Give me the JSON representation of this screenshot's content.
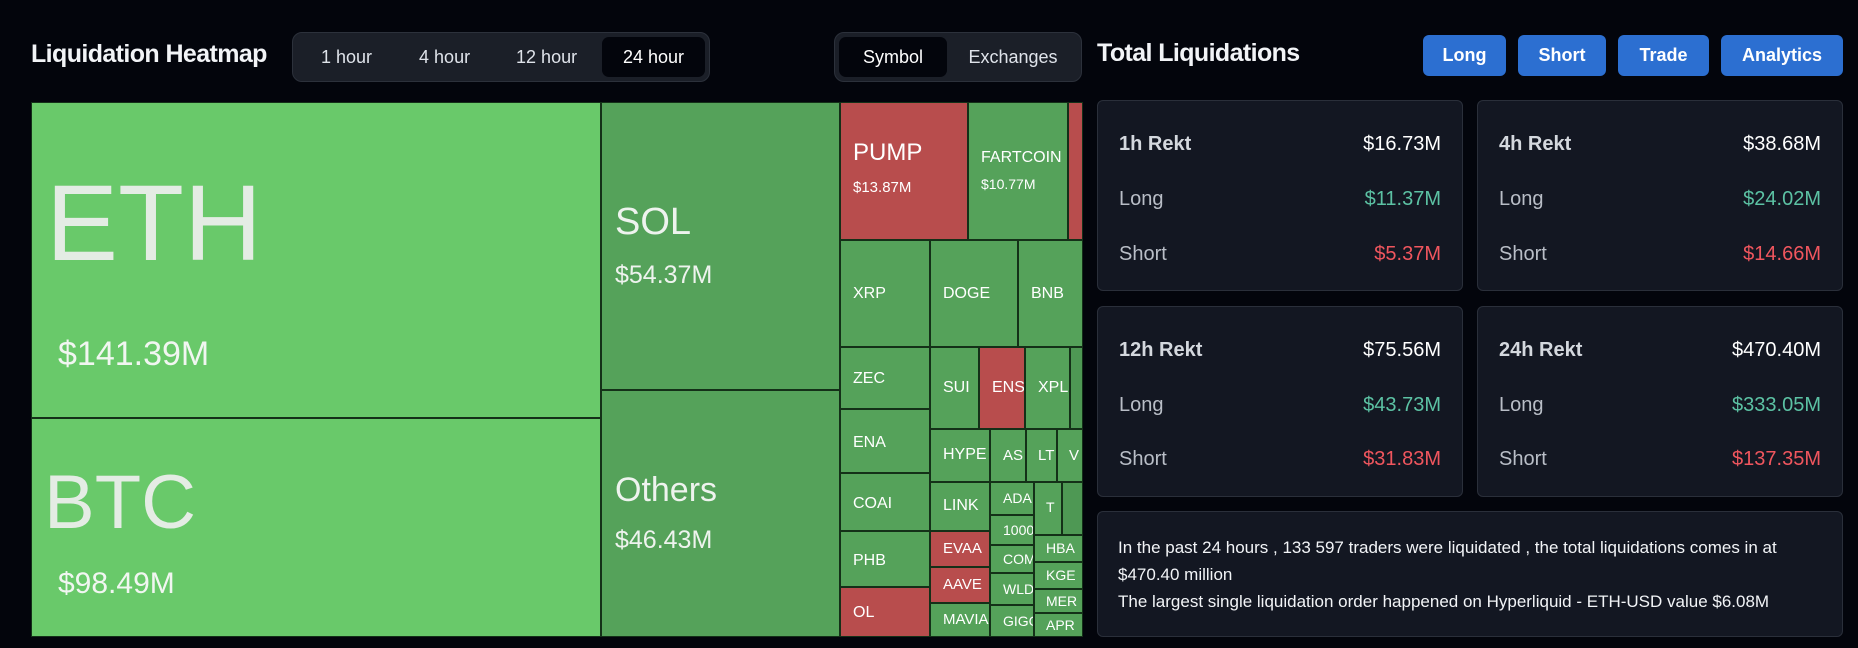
{
  "heatmap": {
    "title": "Liquidation Heatmap",
    "time_options": [
      "1 hour",
      "4 hour",
      "12 hour",
      "24 hour"
    ],
    "selected_time": "24 hour",
    "view_options": [
      "Symbol",
      "Exchanges"
    ],
    "selected_view": "Symbol",
    "tiles": {
      "eth": {
        "name": "ETH",
        "value": "$141.39M",
        "status": "long"
      },
      "btc": {
        "name": "BTC",
        "value": "$98.49M",
        "status": "long"
      },
      "sol": {
        "name": "SOL",
        "value": "$54.37M",
        "status": "long"
      },
      "others": {
        "name": "Others",
        "value": "$46.43M",
        "status": "long"
      },
      "pump": {
        "name": "PUMP",
        "value": "$13.87M",
        "status": "short"
      },
      "fartcoin": {
        "name": "FARTCOIN",
        "value": "$10.77M",
        "status": "long"
      },
      "xrp": {
        "name": "XRP"
      },
      "doge": {
        "name": "DOGE"
      },
      "bnb": {
        "name": "BNB"
      },
      "zec": {
        "name": "ZEC"
      },
      "ena": {
        "name": "ENA"
      },
      "coai": {
        "name": "COAI"
      },
      "phb": {
        "name": "PHB"
      },
      "ol": {
        "name": "OL"
      },
      "sui": {
        "name": "SUI"
      },
      "ens": {
        "name": "ENS"
      },
      "xpl": {
        "name": "XPL"
      },
      "hype": {
        "name": "HYPE"
      },
      "as": {
        "name": "AS"
      },
      "lt": {
        "name": "LT"
      },
      "v": {
        "name": "V"
      },
      "link": {
        "name": "LINK"
      },
      "ada": {
        "name": "ADA"
      },
      "t": {
        "name": "T"
      },
      "evaa": {
        "name": "EVAA"
      },
      "n1000": {
        "name": "1000"
      },
      "hba": {
        "name": "HBA"
      },
      "aave": {
        "name": "AAVE"
      },
      "com": {
        "name": "COM"
      },
      "kge": {
        "name": "KGE"
      },
      "wld": {
        "name": "WLD"
      },
      "mer": {
        "name": "MER"
      },
      "mavia": {
        "name": "MAVIA"
      },
      "gig": {
        "name": "GIGG"
      },
      "apr": {
        "name": "APR"
      }
    }
  },
  "totals": {
    "title": "Total Liquidations",
    "buttons": [
      "Long",
      "Short",
      "Trade",
      "Analytics"
    ],
    "cards": [
      {
        "label": "1h Rekt",
        "total": "$16.73M",
        "long_label": "Long",
        "long": "$11.37M",
        "short_label": "Short",
        "short": "$5.37M"
      },
      {
        "label": "4h Rekt",
        "total": "$38.68M",
        "long_label": "Long",
        "long": "$24.02M",
        "short_label": "Short",
        "short": "$14.66M"
      },
      {
        "label": "12h Rekt",
        "total": "$75.56M",
        "long_label": "Long",
        "long": "$43.73M",
        "short_label": "Short",
        "short": "$31.83M"
      },
      {
        "label": "24h Rekt",
        "total": "$470.40M",
        "long_label": "Long",
        "long": "$333.05M",
        "short_label": "Short",
        "short": "$137.35M"
      }
    ],
    "summary_line1": "In the past 24 hours , 133 597 traders were liquidated , the total liquidations comes in at $470.40 million",
    "summary_line2": "The largest single liquidation order happened on Hyperliquid - ETH-USD value $6.08M"
  },
  "colors": {
    "long_tile_light": "#69c96a",
    "long_tile": "#55a25a",
    "short_tile": "#b84d4d",
    "accent_button": "#2c6fd1",
    "long_text": "#5cc2a4",
    "short_text": "#f0565e"
  }
}
